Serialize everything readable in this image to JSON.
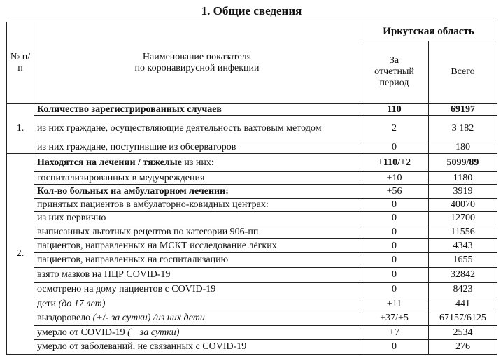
{
  "title": "1. Общие сведения",
  "header": {
    "num": "№ п/п",
    "name_line1": "Наименование показателя",
    "name_line2": "по коронавирусной инфекции",
    "region": "Иркутская область",
    "period": "За отчетный период",
    "total": "Всего"
  },
  "sections": [
    {
      "num": "1.",
      "rows": [
        {
          "b": "Количество зарегистрированных случаев",
          "t": "",
          "i": "",
          "period": "110",
          "total": "69197",
          "bold_values": true,
          "h": 18
        },
        {
          "b": "",
          "t": "из них граждане, осуществляющие деятельность вахтовым методом",
          "i": "",
          "period": "2",
          "total": "3 182",
          "bold_values": false,
          "h": 36
        },
        {
          "b": "",
          "t": "из них граждане, поступившие из обсерваторов",
          "i": "",
          "period": "0",
          "total": "180",
          "bold_values": false,
          "h": 18
        }
      ]
    },
    {
      "num": "2.",
      "rows": [
        {
          "b": "Находятся на лечении / тяжелые",
          "t": " из них:",
          "i": "",
          "period": "+110/+2",
          "total": "5099/89",
          "bold_values": true,
          "h": 26
        },
        {
          "b": "",
          "t": "госпитализированных в медучреждения",
          "i": "",
          "period": "+10",
          "total": "1180",
          "bold_values": false,
          "h": 18
        },
        {
          "b": "Кол-во больных на амбулаторном лечении:",
          "t": "",
          "i": "",
          "period": "+56",
          "total": "3919",
          "bold_values": false,
          "h": 20
        },
        {
          "b": "",
          "t": "принятых пациентов в амбулаторно-ковидных центрах:",
          "i": "",
          "period": "0",
          "total": "40070",
          "bold_values": false,
          "h": 19
        },
        {
          "b": "",
          "t": "из них первично",
          "i": "",
          "period": "0",
          "total": "12700",
          "bold_values": false,
          "h": 19
        },
        {
          "b": "",
          "t": "выписанных льготных рецептов по категории 906-пп",
          "i": "",
          "period": "0",
          "total": "11556",
          "bold_values": false,
          "h": 20
        },
        {
          "b": "",
          "t": "пациентов, направленных на МСКТ исследование лёгких",
          "i": "",
          "period": "0",
          "total": "4343",
          "bold_values": false,
          "h": 20
        },
        {
          "b": "",
          "t": "пациентов, направленных на госпитализацию",
          "i": "",
          "period": "0",
          "total": "1655",
          "bold_values": false,
          "h": 21
        },
        {
          "b": "",
          "t": "взято мазков на ПЦР COVID-19",
          "i": "",
          "period": "0",
          "total": "32842",
          "bold_values": false,
          "h": 21
        },
        {
          "b": "",
          "t": "осмотрено на дому пациентов с COVID-19",
          "i": "",
          "period": "0",
          "total": "8423",
          "bold_values": false,
          "h": 21
        },
        {
          "b": "",
          "t": "дети ",
          "i": "(до 17 лет)",
          "period": "+11",
          "total": "441",
          "bold_values": false,
          "h": 20
        },
        {
          "b": "",
          "t": "выздоровело ",
          "i": "(+/- за сутки) /из них дети",
          "period": "+37/+5",
          "total": "67157/6125",
          "bold_values": false,
          "h": 21
        },
        {
          "b": "",
          "t": "умерло от COVID-19 ",
          "i": "(+ за сутки)",
          "period": "+7",
          "total": "2534",
          "bold_values": false,
          "h": 20
        },
        {
          "b": "",
          "t": "умерло от заболеваний, не связанных с COVID-19",
          "i": "",
          "period": "0",
          "total": "276",
          "bold_values": false,
          "h": 21
        }
      ]
    }
  ]
}
